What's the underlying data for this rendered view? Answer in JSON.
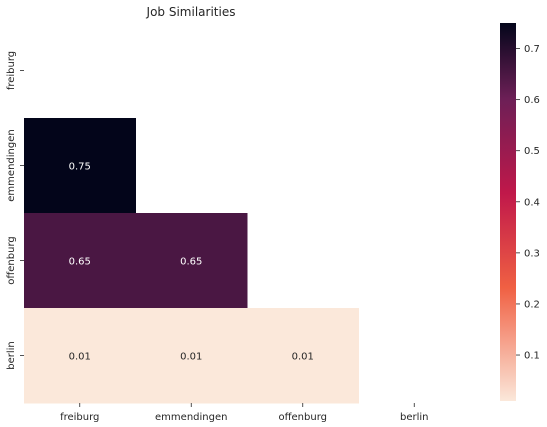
{
  "chart_data": {
    "type": "heatmap",
    "title": "Job Similarities",
    "x_categories": [
      "freiburg",
      "emmendingen",
      "offenburg",
      "berlin"
    ],
    "y_categories": [
      "freiburg",
      "emmendingen",
      "offenburg",
      "berlin"
    ],
    "mask": "upper-triangle-including-diagonal",
    "cells": [
      {
        "row": 1,
        "col": 0,
        "value": 0.75,
        "label": "0.75"
      },
      {
        "row": 2,
        "col": 0,
        "value": 0.65,
        "label": "0.65"
      },
      {
        "row": 2,
        "col": 1,
        "value": 0.65,
        "label": "0.65"
      },
      {
        "row": 3,
        "col": 0,
        "value": 0.01,
        "label": "0.01"
      },
      {
        "row": 3,
        "col": 1,
        "value": 0.01,
        "label": "0.01"
      },
      {
        "row": 3,
        "col": 2,
        "value": 0.01,
        "label": "0.01"
      }
    ],
    "colorbar": {
      "colormap": "rocket_r",
      "range": [
        0.01,
        0.75
      ],
      "ticks": [
        0.1,
        0.2,
        0.3,
        0.4,
        0.5,
        0.6,
        0.7
      ],
      "tick_labels": [
        "0.1",
        "0.2",
        "0.3",
        "0.4",
        "0.5",
        "0.6",
        "0.7"
      ]
    },
    "colors": {
      "low": "#fbe8da",
      "mid_low": "#f06043",
      "mid": "#c0184a",
      "mid_high": "#6c1f56",
      "high": "#03051a",
      "text_on_dark": "#ffffff",
      "text_on_light": "#262626"
    },
    "grid": false
  }
}
